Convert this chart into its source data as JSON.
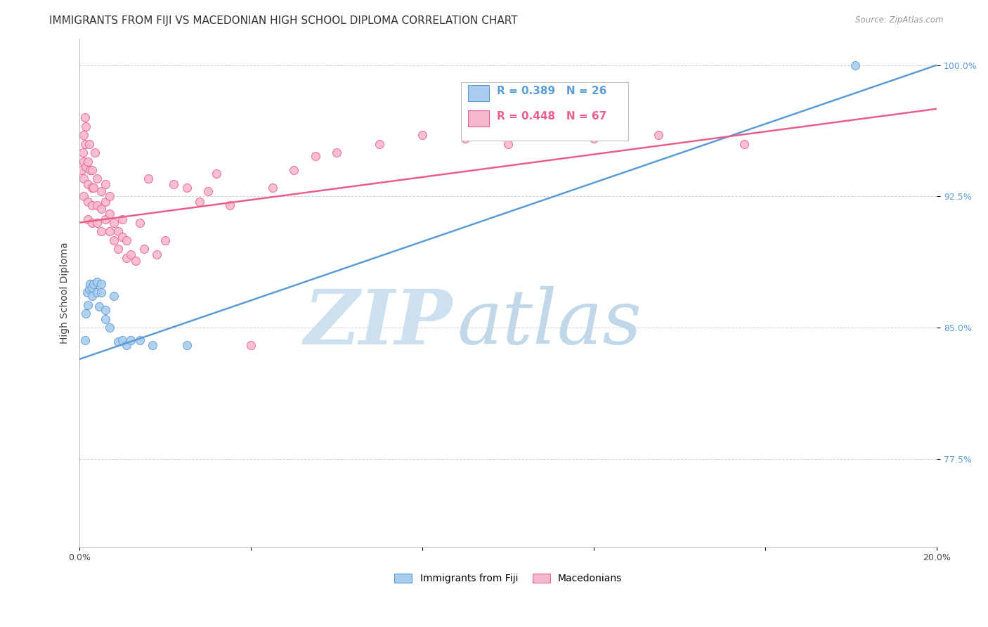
{
  "title": "IMMIGRANTS FROM FIJI VS MACEDONIAN HIGH SCHOOL DIPLOMA CORRELATION CHART",
  "source": "Source: ZipAtlas.com",
  "ylabel": "High School Diploma",
  "xlim": [
    0.0,
    0.2
  ],
  "ylim": [
    0.725,
    1.015
  ],
  "xticks": [
    0.0,
    0.04,
    0.08,
    0.12,
    0.16,
    0.2
  ],
  "xticklabels": [
    "0.0%",
    "",
    "",
    "",
    "",
    "20.0%"
  ],
  "ytick_positions": [
    0.775,
    0.85,
    0.925,
    1.0
  ],
  "ytick_labels": [
    "77.5%",
    "85.0%",
    "92.5%",
    "100.0%"
  ],
  "fiji_color": "#5b9bd5",
  "mac_color": "#e8608a",
  "fiji_scatter_color": "#aaccee",
  "mac_scatter_color": "#f8b8cc",
  "fiji_r": "0.389",
  "fiji_n": "26",
  "mac_r": "0.448",
  "mac_n": "67",
  "fiji_label": "Immigrants from Fiji",
  "mac_label": "Macedonians",
  "fiji_line_x0": 0.0,
  "fiji_line_y0": 0.832,
  "fiji_line_x1": 0.2,
  "fiji_line_y1": 1.0,
  "mac_line_x0": 0.0,
  "mac_line_y0": 0.91,
  "mac_line_x1": 0.2,
  "mac_line_y1": 0.975,
  "fiji_scatter_x": [
    0.0012,
    0.0015,
    0.0018,
    0.002,
    0.0022,
    0.0025,
    0.003,
    0.003,
    0.0032,
    0.004,
    0.004,
    0.0045,
    0.005,
    0.005,
    0.006,
    0.006,
    0.007,
    0.008,
    0.009,
    0.01,
    0.011,
    0.012,
    0.014,
    0.017,
    0.025,
    0.181
  ],
  "fiji_scatter_y": [
    0.843,
    0.858,
    0.87,
    0.863,
    0.872,
    0.875,
    0.868,
    0.873,
    0.875,
    0.87,
    0.876,
    0.862,
    0.87,
    0.875,
    0.855,
    0.86,
    0.85,
    0.868,
    0.842,
    0.843,
    0.84,
    0.843,
    0.843,
    0.84,
    0.84,
    1.0
  ],
  "mac_scatter_x": [
    0.0005,
    0.0008,
    0.001,
    0.001,
    0.001,
    0.001,
    0.0012,
    0.0012,
    0.0015,
    0.0015,
    0.002,
    0.002,
    0.002,
    0.002,
    0.0022,
    0.0025,
    0.003,
    0.003,
    0.003,
    0.003,
    0.0032,
    0.0035,
    0.004,
    0.004,
    0.004,
    0.005,
    0.005,
    0.005,
    0.006,
    0.006,
    0.006,
    0.007,
    0.007,
    0.007,
    0.008,
    0.008,
    0.009,
    0.009,
    0.01,
    0.01,
    0.011,
    0.011,
    0.012,
    0.013,
    0.014,
    0.015,
    0.016,
    0.018,
    0.02,
    0.022,
    0.025,
    0.028,
    0.03,
    0.032,
    0.035,
    0.04,
    0.045,
    0.05,
    0.055,
    0.06,
    0.07,
    0.08,
    0.09,
    0.1,
    0.12,
    0.135,
    0.155
  ],
  "mac_scatter_y": [
    0.94,
    0.95,
    0.96,
    0.945,
    0.935,
    0.925,
    0.97,
    0.955,
    0.965,
    0.942,
    0.932,
    0.945,
    0.922,
    0.912,
    0.955,
    0.94,
    0.93,
    0.92,
    0.91,
    0.94,
    0.93,
    0.95,
    0.92,
    0.91,
    0.935,
    0.918,
    0.928,
    0.905,
    0.912,
    0.922,
    0.932,
    0.905,
    0.915,
    0.925,
    0.91,
    0.9,
    0.905,
    0.895,
    0.902,
    0.912,
    0.9,
    0.89,
    0.892,
    0.888,
    0.91,
    0.895,
    0.935,
    0.892,
    0.9,
    0.932,
    0.93,
    0.922,
    0.928,
    0.938,
    0.92,
    0.84,
    0.93,
    0.94,
    0.948,
    0.95,
    0.955,
    0.96,
    0.958,
    0.955,
    0.958,
    0.96,
    0.955
  ],
  "background_color": "#ffffff",
  "grid_color": "#cccccc",
  "watermark_zip_color": "#cce0f0",
  "watermark_atlas_color": "#c0d8e8",
  "title_fontsize": 11,
  "axis_label_fontsize": 10,
  "tick_fontsize": 9,
  "scatter_size": 75,
  "line_width": 1.8
}
